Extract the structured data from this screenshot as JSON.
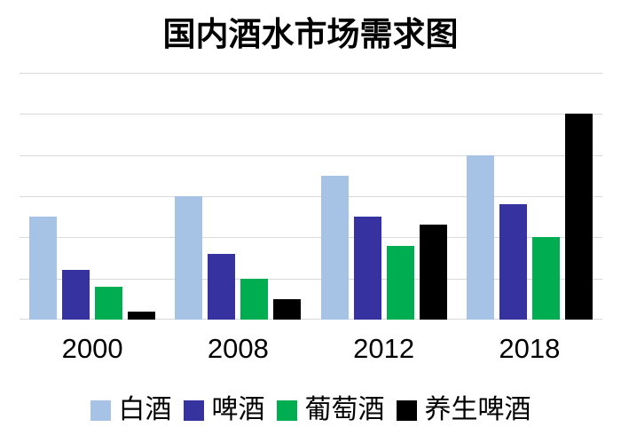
{
  "chart_data": {
    "type": "bar",
    "title": "国内酒水市场需求图",
    "categories": [
      "2000",
      "2008",
      "2012",
      "2018"
    ],
    "series": [
      {
        "name": "白酒",
        "color": "#A6C3E5",
        "values": [
          2.5,
          3.0,
          3.5,
          4.0
        ]
      },
      {
        "name": "啤酒",
        "color": "#3632A0",
        "values": [
          1.2,
          1.6,
          2.5,
          2.8
        ]
      },
      {
        "name": "葡萄酒",
        "color": "#00AD50",
        "values": [
          0.8,
          1.0,
          1.8,
          2.0
        ]
      },
      {
        "name": "养生啤酒",
        "color": "#000000",
        "values": [
          0.2,
          0.5,
          2.3,
          5.0
        ]
      }
    ],
    "xlabel": "",
    "ylabel": "",
    "ylim": [
      0,
      6
    ],
    "gridline_step": 1,
    "grid_on": true,
    "grid_color": "#D9D9D9",
    "legend_position": "bottom",
    "y_axis_labels_visible": false
  }
}
